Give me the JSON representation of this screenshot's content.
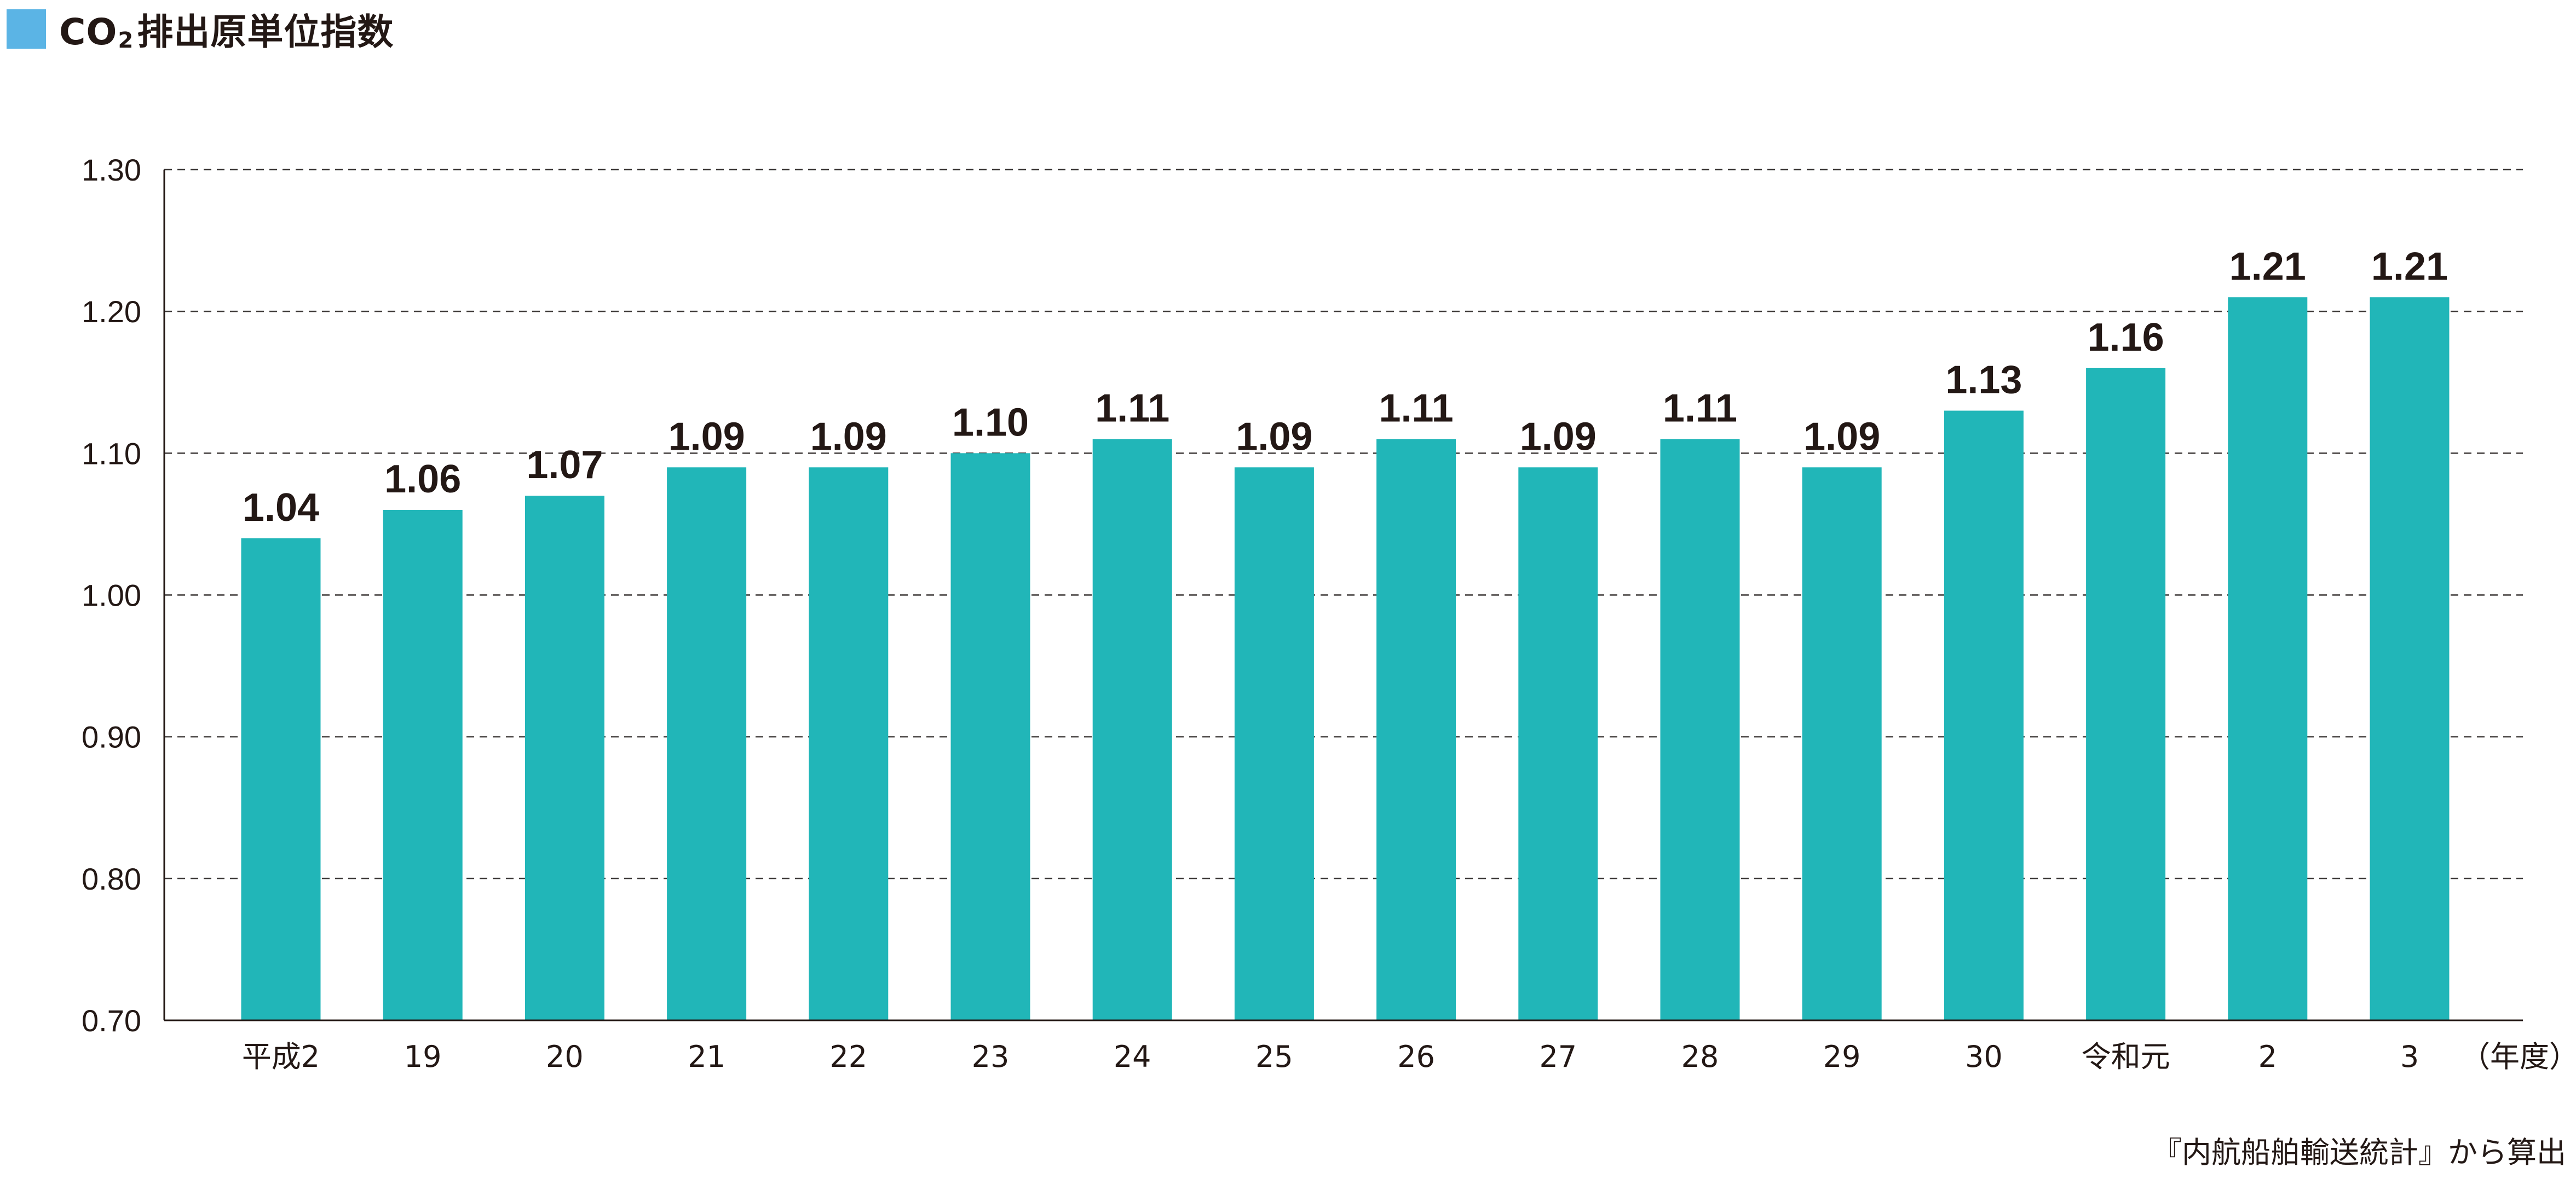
{
  "title": {
    "prefix": "CO",
    "subscript": "2",
    "suffix": "排出原単位指数"
  },
  "colors": {
    "title_swatch": "#5bb4e5",
    "bar": "#21b6b8",
    "text": "#231815"
  },
  "chart_data": {
    "type": "bar",
    "title": "CO2排出原単位指数",
    "categories": [
      "平成2",
      "19",
      "20",
      "21",
      "22",
      "23",
      "24",
      "25",
      "26",
      "27",
      "28",
      "29",
      "30",
      "令和元",
      "2",
      "3"
    ],
    "values": [
      1.04,
      1.06,
      1.07,
      1.09,
      1.09,
      1.1,
      1.11,
      1.09,
      1.11,
      1.09,
      1.11,
      1.09,
      1.13,
      1.16,
      1.21,
      1.21
    ],
    "data_labels": [
      "1.04",
      "1.06",
      "1.07",
      "1.09",
      "1.09",
      "1.10",
      "1.11",
      "1.09",
      "1.11",
      "1.09",
      "1.11",
      "1.09",
      "1.13",
      "1.16",
      "1.21",
      "1.21"
    ],
    "ylim": [
      0.7,
      1.3
    ],
    "yticks": [
      "0.70",
      "0.80",
      "0.90",
      "1.00",
      "1.10",
      "1.20",
      "1.30"
    ],
    "xlabel": "（年度）",
    "ylabel": "",
    "grid": true,
    "legend": "none"
  },
  "source_note": "『内航船舶輸送統計』から算出"
}
